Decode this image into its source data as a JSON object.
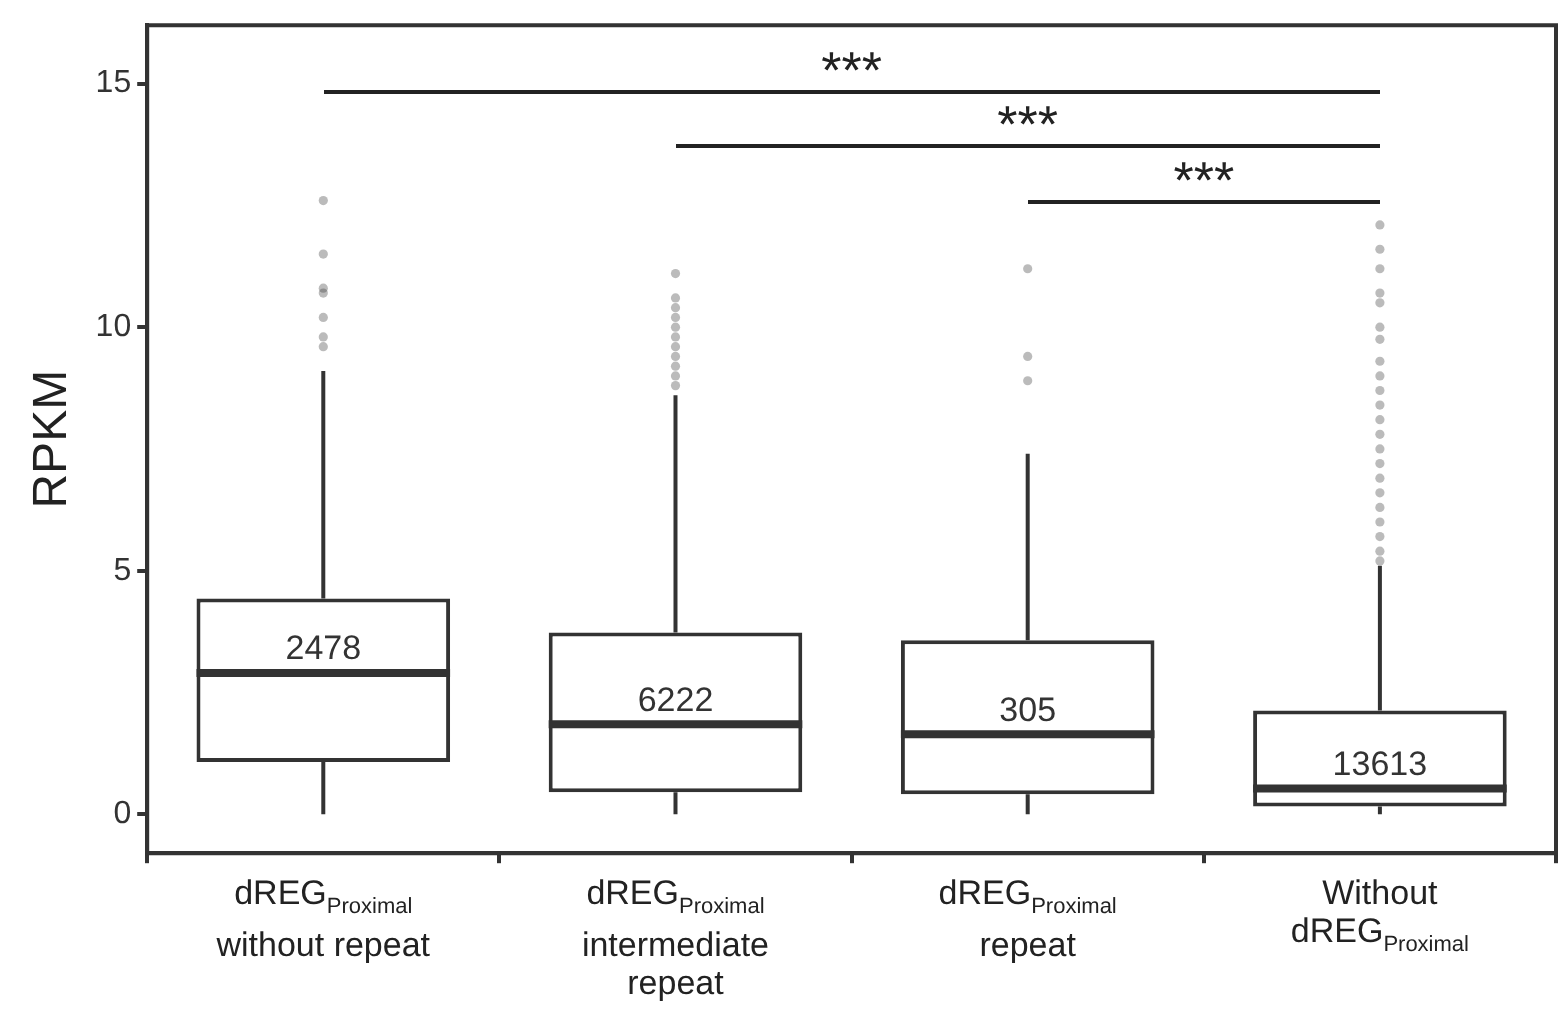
{
  "chart_data": {
    "type": "box",
    "ylabel": "RPKM",
    "categories": [
      "dREG$_{Proximal}$ without repeat",
      "dREG$_{Proximal}$ intermediate repeat",
      "dREG$_{Proximal}$ repeat",
      "Without dREG$_{Proximal}$"
    ],
    "color": "#333333",
    "boxes": [
      {
        "low": 0,
        "q1": 1.07,
        "median": 2.9,
        "q3": 4.43,
        "high": 9.1,
        "outliers": [
          9.6,
          9.8,
          10.2,
          10.7,
          10.8,
          11.5,
          12.6
        ]
      },
      {
        "low": 0,
        "q1": 0.45,
        "median": 1.85,
        "q3": 3.73,
        "high": 8.6,
        "outliers": [
          8.8,
          9.0,
          9.2,
          9.4,
          9.6,
          9.8,
          10.0,
          10.2,
          10.4,
          10.6,
          11.1
        ]
      },
      {
        "low": 0,
        "q1": 0.41,
        "median": 1.64,
        "q3": 3.57,
        "high": 7.4,
        "outliers": [
          8.9,
          9.4,
          11.2
        ]
      },
      {
        "low": 0,
        "q1": 0.16,
        "median": 0.53,
        "q3": 2.13,
        "high": 5.1,
        "outliers": [
          5.2,
          5.4,
          5.7,
          6.0,
          6.3,
          6.6,
          6.9,
          7.2,
          7.5,
          7.8,
          8.1,
          8.4,
          8.7,
          9.0,
          9.3,
          9.75,
          10.0,
          10.5,
          10.7,
          11.2,
          11.6,
          12.1
        ]
      }
    ],
    "ylim": [
      -0.8,
      16.2
    ],
    "yticks": [
      0,
      5,
      10,
      15
    ],
    "grid": false,
    "legend": false,
    "annotations": [
      {
        "text": "2478",
        "x": "dREG$_{Proximal}$ without repeat",
        "y": 2.9
      },
      {
        "text": "6222",
        "x": "dREG$_{Proximal}$ intermediate repeat",
        "y": 1.85
      },
      {
        "text": "305",
        "x": "dREG$_{Proximal}$ repeat",
        "y": 1.64
      },
      {
        "text": "13613",
        "x": "Without dREG$_{Proximal}$",
        "y": 0.53
      },
      "***",
      "***",
      "***"
    ]
  }
}
